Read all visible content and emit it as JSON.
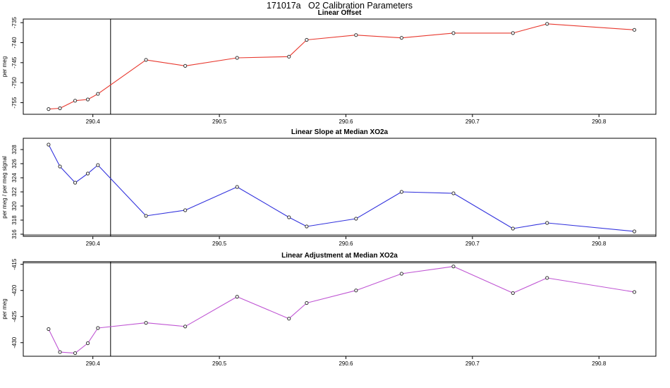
{
  "title": "171017a   O2 Calibration Parameters",
  "chart_data": [
    {
      "type": "line",
      "title": "Linear Offset",
      "ylabel": "per meg",
      "line_color": "#e8382e",
      "marker": "open-circle",
      "marker_stroke": "#333333",
      "x": [
        290.365,
        290.374,
        290.386,
        290.396,
        290.404,
        290.442,
        290.473,
        290.514,
        290.555,
        290.569,
        290.608,
        290.644,
        290.685,
        290.732,
        290.759,
        290.828
      ],
      "y": [
        -756.6,
        -756.4,
        -754.5,
        -754.2,
        -752.8,
        -744.3,
        -745.8,
        -743.8,
        -743.5,
        -739.3,
        -738.1,
        -738.8,
        -737.6,
        -737.6,
        -735.3,
        -736.8
      ],
      "xlim": [
        290.345,
        290.845
      ],
      "ylim": [
        -757.9,
        -734.1
      ],
      "xticks": [
        290.4,
        290.5,
        290.6,
        290.7,
        290.8
      ],
      "yticks": [
        -755,
        -750,
        -745,
        -740,
        -735
      ],
      "vline_x": 290.414,
      "gray_hline": null,
      "grid": false,
      "legend": "none"
    },
    {
      "type": "line",
      "title": "Linear Slope at Median XO2a",
      "ylabel": "per meg / per meg signal",
      "line_color": "#3333dd",
      "marker": "open-circle",
      "marker_stroke": "#333333",
      "x": [
        290.365,
        290.374,
        290.386,
        290.396,
        290.404,
        290.442,
        290.473,
        290.514,
        290.555,
        290.569,
        290.608,
        290.644,
        290.685,
        290.732,
        290.759,
        290.828
      ],
      "y": [
        328.7,
        325.6,
        323.3,
        324.6,
        325.8,
        318.6,
        319.4,
        322.7,
        318.4,
        317.1,
        318.2,
        322.0,
        321.8,
        316.8,
        317.6,
        316.4
      ],
      "xlim": [
        290.345,
        290.845
      ],
      "ylim": [
        315.7,
        329.6
      ],
      "xticks": [
        290.4,
        290.5,
        290.6,
        290.7,
        290.8
      ],
      "yticks": [
        316,
        318,
        320,
        322,
        324,
        326,
        328
      ],
      "vline_x": 290.414,
      "gray_hline": 315.9,
      "grid": false,
      "legend": "none"
    },
    {
      "type": "line",
      "title": "Linear Adjustment at Median XO2a",
      "ylabel": "per meg",
      "line_color": "#bf55d3",
      "marker": "open-circle",
      "marker_stroke": "#333333",
      "x": [
        290.365,
        290.374,
        290.386,
        290.396,
        290.404,
        290.442,
        290.473,
        290.514,
        290.555,
        290.569,
        290.608,
        290.644,
        290.685,
        290.732,
        290.759,
        290.828
      ],
      "y": [
        -427.4,
        -431.8,
        -432.0,
        -430.1,
        -427.2,
        -426.2,
        -426.9,
        -421.2,
        -425.4,
        -422.4,
        -420.0,
        -416.8,
        -415.4,
        -420.5,
        -417.6,
        -420.3
      ],
      "xlim": [
        290.345,
        290.845
      ],
      "ylim": [
        -432.6,
        -414.5
      ],
      "xticks": [
        290.4,
        290.5,
        290.6,
        290.7,
        290.8
      ],
      "yticks": [
        -430,
        -425,
        -420,
        -415
      ],
      "vline_x": 290.414,
      "gray_hline": -414.7,
      "grid": false,
      "legend": "none"
    }
  ]
}
